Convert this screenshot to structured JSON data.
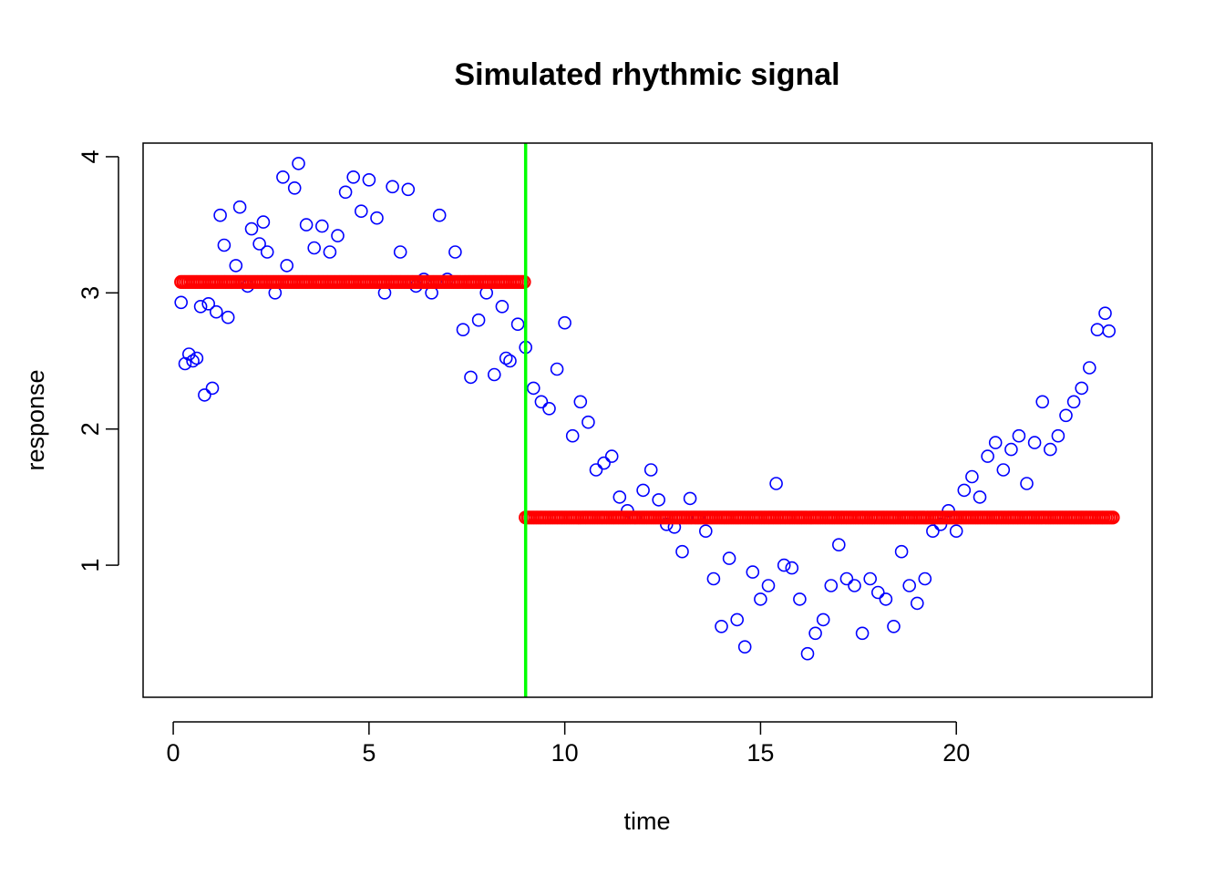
{
  "chart_data": {
    "type": "scatter",
    "title": "Simulated rhythmic signal",
    "xlabel": "time",
    "ylabel": "response",
    "xlim": [
      -0.77,
      25.0
    ],
    "ylim": [
      0.03,
      4.1
    ],
    "xticks": [
      0,
      5,
      10,
      15,
      20
    ],
    "yticks": [
      1,
      2,
      3,
      4
    ],
    "grid": false,
    "legend": "none",
    "colors": {
      "observed": "#0000ff",
      "fitted": "#ff0000",
      "changepoint": "#00ff00"
    },
    "changepoint_x": 9.0,
    "series": [
      {
        "key": "observed",
        "marker": "open-circle",
        "x": [
          0.2,
          0.3,
          0.4,
          0.5,
          0.6,
          0.7,
          0.8,
          0.9,
          1.0,
          1.1,
          1.2,
          1.3,
          1.4,
          1.6,
          1.7,
          1.9,
          2.0,
          2.2,
          2.3,
          2.4,
          2.6,
          2.8,
          2.9,
          3.1,
          3.2,
          3.4,
          3.6,
          3.8,
          4.0,
          4.2,
          4.4,
          4.6,
          4.8,
          5.0,
          5.2,
          5.4,
          5.6,
          5.8,
          6.0,
          6.2,
          6.4,
          6.6,
          6.8,
          7.0,
          7.2,
          7.4,
          7.6,
          7.8,
          8.0,
          8.2,
          8.4,
          8.5,
          8.6,
          8.8,
          9.0,
          9.2,
          9.4,
          9.6,
          9.8,
          10.0,
          10.2,
          10.4,
          10.6,
          10.8,
          11.0,
          11.2,
          11.4,
          11.6,
          11.8,
          12.0,
          12.2,
          12.4,
          12.6,
          12.8,
          13.0,
          13.2,
          13.4,
          13.6,
          13.8,
          14.0,
          14.2,
          14.4,
          14.6,
          14.8,
          15.0,
          15.2,
          15.4,
          15.6,
          15.8,
          16.0,
          16.2,
          16.4,
          16.6,
          16.8,
          17.0,
          17.2,
          17.4,
          17.6,
          17.8,
          18.0,
          18.2,
          18.4,
          18.6,
          18.8,
          19.0,
          19.2,
          19.4,
          19.6,
          19.8,
          20.0,
          20.2,
          20.4,
          20.6,
          20.8,
          21.0,
          21.2,
          21.4,
          21.6,
          21.8,
          22.0,
          22.2,
          22.4,
          22.6,
          22.8,
          23.0,
          23.2,
          23.4,
          23.6,
          23.8,
          23.9
        ],
        "y": [
          2.93,
          2.48,
          2.55,
          2.5,
          2.52,
          2.9,
          2.25,
          2.92,
          2.3,
          2.86,
          3.57,
          3.35,
          2.82,
          3.2,
          3.63,
          3.05,
          3.47,
          3.36,
          3.52,
          3.3,
          3.0,
          3.85,
          3.2,
          3.77,
          3.95,
          3.5,
          3.33,
          3.49,
          3.3,
          3.42,
          3.74,
          3.85,
          3.6,
          3.83,
          3.55,
          3.0,
          3.78,
          3.3,
          3.76,
          3.05,
          3.1,
          3.0,
          3.57,
          3.1,
          3.3,
          2.73,
          2.38,
          2.8,
          3.0,
          2.4,
          2.9,
          2.52,
          2.5,
          2.77,
          2.6,
          2.3,
          2.2,
          2.15,
          2.44,
          2.78,
          1.95,
          2.2,
          2.05,
          1.7,
          1.75,
          1.8,
          1.5,
          1.4,
          1.35,
          1.55,
          1.7,
          1.48,
          1.3,
          1.28,
          1.1,
          1.49,
          1.35,
          1.25,
          0.9,
          0.55,
          1.05,
          0.6,
          0.4,
          0.95,
          0.75,
          0.85,
          1.6,
          1.0,
          0.98,
          0.75,
          0.35,
          0.5,
          0.6,
          0.85,
          1.15,
          0.9,
          0.85,
          0.5,
          0.9,
          0.8,
          0.75,
          0.55,
          1.1,
          0.85,
          0.72,
          0.9,
          1.25,
          1.3,
          1.4,
          1.25,
          1.55,
          1.65,
          1.5,
          1.8,
          1.9,
          1.7,
          1.85,
          1.95,
          1.6,
          1.9,
          2.2,
          1.85,
          1.95,
          2.1,
          2.2,
          2.3,
          2.45,
          2.73,
          2.85,
          2.72
        ]
      },
      {
        "key": "fitted",
        "marker": "open-circle",
        "segments": [
          {
            "x_start": 0.2,
            "x_end": 9.0,
            "y": 3.08
          },
          {
            "x_start": 9.0,
            "x_end": 24.0,
            "y": 1.35
          }
        ]
      }
    ]
  }
}
